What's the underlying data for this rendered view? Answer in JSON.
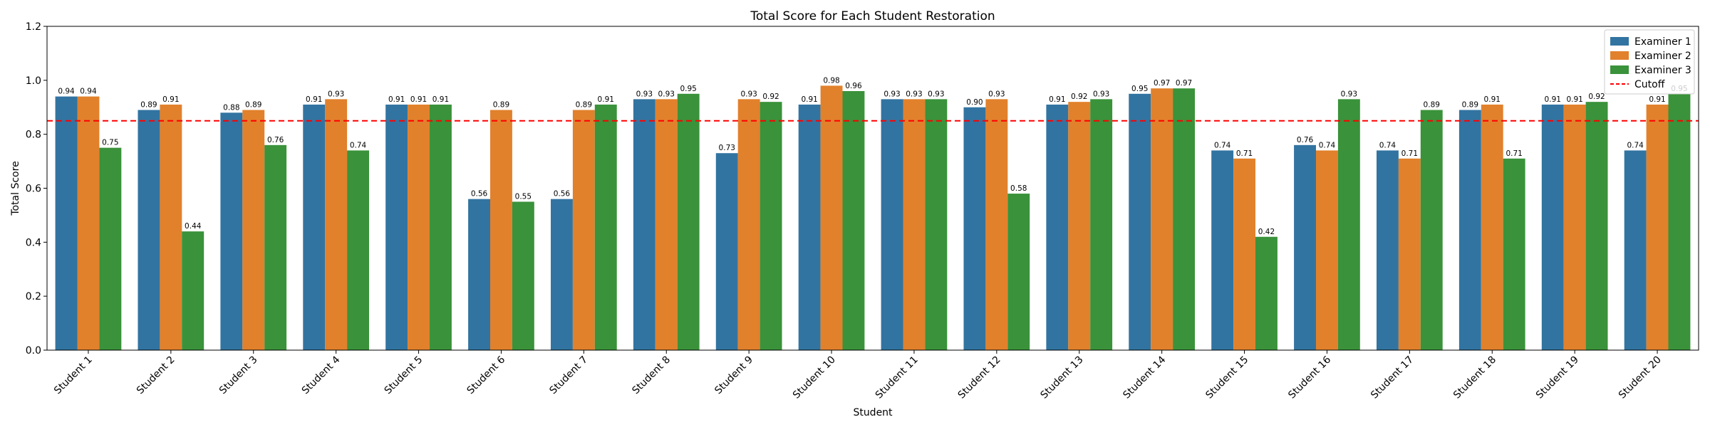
{
  "chart_data": {
    "type": "bar",
    "title": "Total Score for Each Student Restoration",
    "xlabel": "Student",
    "ylabel": "Total Score",
    "ylim": [
      0,
      1.2
    ],
    "yticks": [
      "0.0",
      "0.2",
      "0.4",
      "0.6",
      "0.8",
      "1.0",
      "1.2"
    ],
    "grid": false,
    "legend_position": "top-right",
    "categories": [
      "Student 1",
      "Student 2",
      "Student 3",
      "Student 4",
      "Student 5",
      "Student 6",
      "Student 7",
      "Student 8",
      "Student 9",
      "Student 10",
      "Student 11",
      "Student 12",
      "Student 13",
      "Student 14",
      "Student 15",
      "Student 16",
      "Student 17",
      "Student 18",
      "Student 19",
      "Student 20"
    ],
    "series": [
      {
        "name": "Examiner 1",
        "color": "#3274a1",
        "values": [
          0.94,
          0.89,
          0.88,
          0.91,
          0.91,
          0.56,
          0.56,
          0.93,
          0.73,
          0.91,
          0.93,
          0.9,
          0.91,
          0.95,
          0.74,
          0.76,
          0.74,
          0.89,
          0.91,
          0.74
        ],
        "labels": [
          "0.94",
          "0.89",
          "0.88",
          "0.91",
          "0.91",
          "0.56",
          "0.56",
          "0.93",
          "0.73",
          "0.91",
          "0.93",
          "0.90",
          "0.91",
          "0.95",
          "0.74",
          "0.76",
          "0.74",
          "0.89",
          "0.91",
          "0.74"
        ]
      },
      {
        "name": "Examiner 2",
        "color": "#e1812c",
        "values": [
          0.94,
          0.91,
          0.89,
          0.93,
          0.91,
          0.89,
          0.89,
          0.93,
          0.93,
          0.98,
          0.93,
          0.93,
          0.92,
          0.97,
          0.71,
          0.74,
          0.71,
          0.91,
          0.91,
          0.91
        ],
        "labels": [
          "0.94",
          "0.91",
          "0.89",
          "0.93",
          "0.91",
          "0.89",
          "0.89",
          "0.93",
          "0.93",
          "0.98",
          "0.93",
          "0.93",
          "0.92",
          "0.97",
          "0.71",
          "0.74",
          "0.71",
          "0.91",
          "0.91",
          "0.91"
        ]
      },
      {
        "name": "Examiner 3",
        "color": "#3a923a",
        "values": [
          0.75,
          0.44,
          0.76,
          0.74,
          0.91,
          0.55,
          0.91,
          0.95,
          0.92,
          0.96,
          0.93,
          0.58,
          0.93,
          0.97,
          0.42,
          0.93,
          0.89,
          0.71,
          0.92,
          0.95
        ],
        "labels": [
          "0.75",
          "0.44",
          "0.76",
          "0.74",
          "0.91",
          "0.55",
          "0.91",
          "0.95",
          "0.92",
          "0.96",
          "0.93",
          "0.58",
          "0.93",
          "0.97",
          "0.42",
          "0.93",
          "0.89",
          "0.71",
          "0.92",
          "0.95"
        ]
      }
    ],
    "reference_line": {
      "name": "Cutoff",
      "value": 0.85,
      "color": "#ff0000",
      "style": "dashed"
    }
  }
}
